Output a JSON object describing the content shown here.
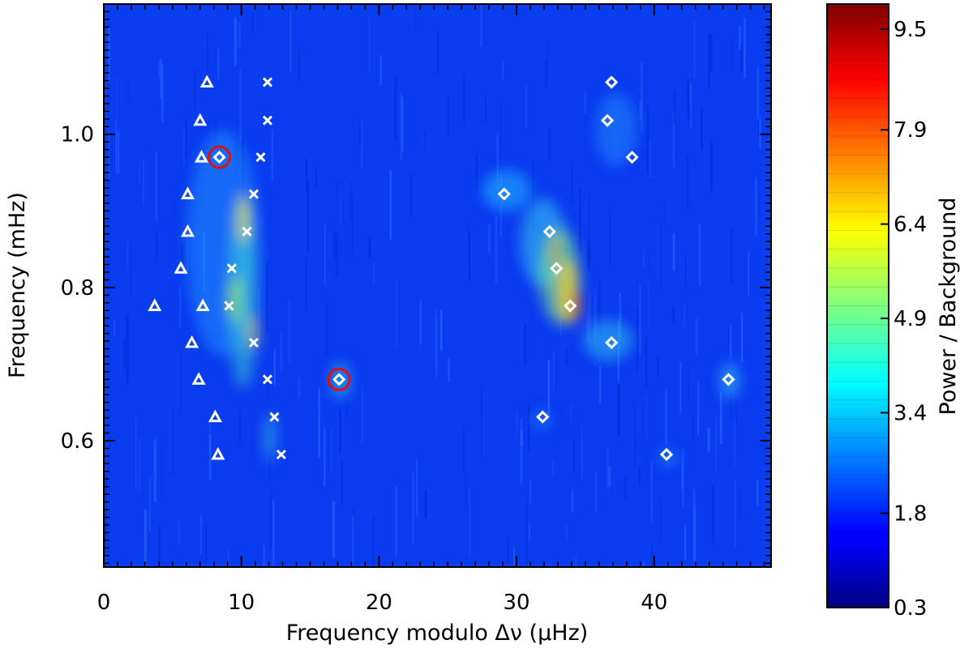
{
  "chart_data": {
    "type": "heatmap",
    "title": "",
    "xlabel": "Frequency modulo Δν (μHz)",
    "ylabel": "Frequency (mHz)",
    "colorbar_label": "Power / Background",
    "xlim": [
      0,
      48.5
    ],
    "ylim": [
      0.435,
      1.17
    ],
    "xticks": [
      0,
      10,
      20,
      30,
      40
    ],
    "yticks": [
      0.6,
      0.8,
      1.0
    ],
    "colorbar_range": [
      0.3,
      9.9
    ],
    "colorbar_ticks": [
      0.3,
      1.8,
      3.4,
      4.9,
      6.4,
      7.9,
      9.5
    ],
    "colormap": "jet",
    "background_color": "#0a3cf0",
    "series": [
      {
        "marker": "triangle",
        "points": [
          {
            "x": 7.5,
            "y": 1.068
          },
          {
            "x": 7.0,
            "y": 1.018
          },
          {
            "x": 7.1,
            "y": 0.97
          },
          {
            "x": 6.1,
            "y": 0.922
          },
          {
            "x": 6.1,
            "y": 0.873
          },
          {
            "x": 5.6,
            "y": 0.825
          },
          {
            "x": 3.7,
            "y": 0.776
          },
          {
            "x": 7.2,
            "y": 0.776
          },
          {
            "x": 6.4,
            "y": 0.728
          },
          {
            "x": 6.9,
            "y": 0.68
          },
          {
            "x": 8.1,
            "y": 0.631
          },
          {
            "x": 8.3,
            "y": 0.582
          }
        ]
      },
      {
        "marker": "cross",
        "points": [
          {
            "x": 11.9,
            "y": 1.068
          },
          {
            "x": 11.9,
            "y": 1.018
          },
          {
            "x": 11.4,
            "y": 0.97
          },
          {
            "x": 10.9,
            "y": 0.922
          },
          {
            "x": 10.4,
            "y": 0.873
          },
          {
            "x": 9.3,
            "y": 0.825
          },
          {
            "x": 9.1,
            "y": 0.776
          },
          {
            "x": 10.9,
            "y": 0.728
          },
          {
            "x": 11.9,
            "y": 0.68
          },
          {
            "x": 12.4,
            "y": 0.631
          },
          {
            "x": 12.9,
            "y": 0.582
          }
        ]
      },
      {
        "marker": "diamond",
        "points": [
          {
            "x": 36.9,
            "y": 1.068
          },
          {
            "x": 36.6,
            "y": 1.018
          },
          {
            "x": 8.4,
            "y": 0.97
          },
          {
            "x": 38.4,
            "y": 0.97
          },
          {
            "x": 29.1,
            "y": 0.922
          },
          {
            "x": 32.4,
            "y": 0.873
          },
          {
            "x": 32.9,
            "y": 0.825
          },
          {
            "x": 33.9,
            "y": 0.776
          },
          {
            "x": 36.9,
            "y": 0.728
          },
          {
            "x": 17.1,
            "y": 0.68
          },
          {
            "x": 45.4,
            "y": 0.68
          },
          {
            "x": 31.9,
            "y": 0.631
          },
          {
            "x": 40.9,
            "y": 0.582
          }
        ]
      }
    ],
    "highlighted": [
      {
        "x": 8.4,
        "y": 0.97
      },
      {
        "x": 17.1,
        "y": 0.68
      }
    ]
  }
}
